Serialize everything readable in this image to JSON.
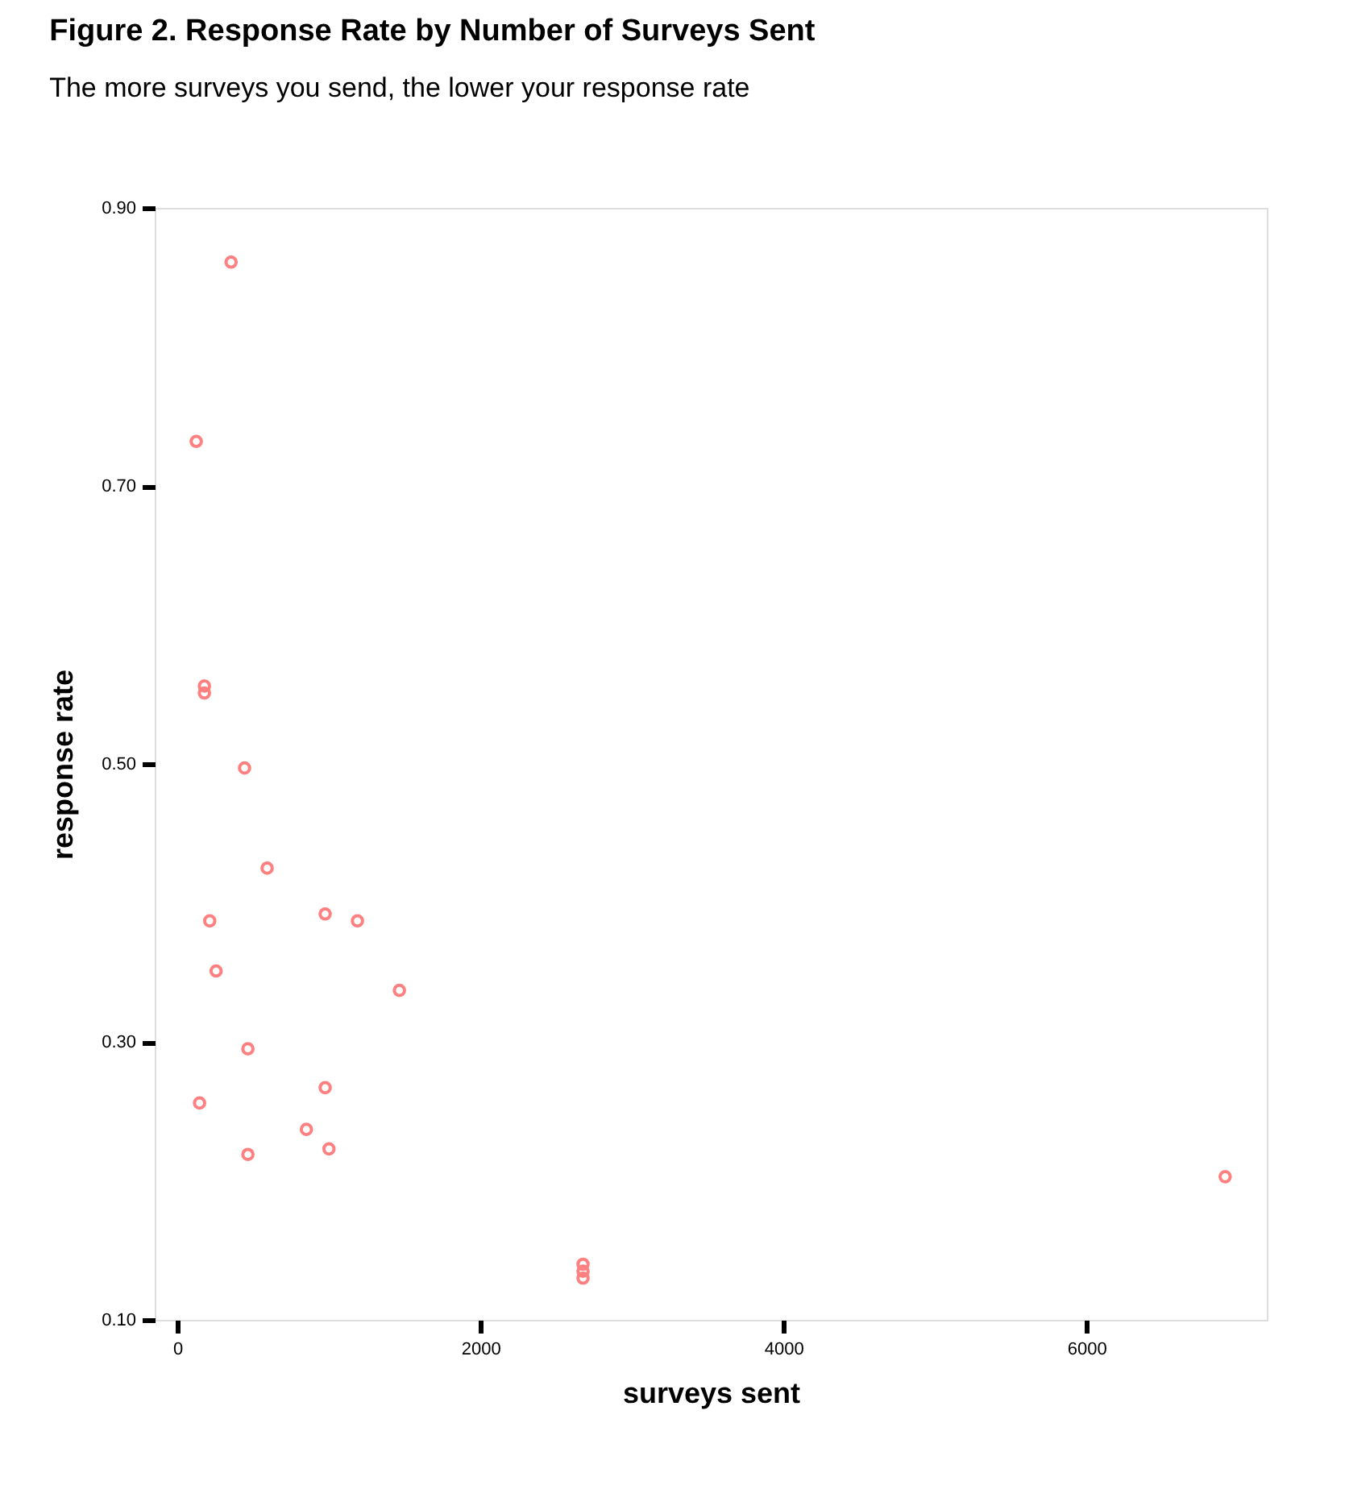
{
  "chart_data": {
    "type": "scatter",
    "title": "Figure 2. Response Rate by Number of Surveys Sent",
    "subtitle": "The more surveys you send, the lower your response rate",
    "xlabel": "surveys sent",
    "ylabel": "response rate",
    "x": [
      354,
      124,
      178,
      178,
      443,
      592,
      213,
      975,
      1188,
      255,
      1465,
      465,
      975,
      146,
      851,
      1000,
      465,
      2677,
      2677,
      2677,
      6915
    ],
    "series": [
      {
        "color": "#ff8080",
        "values": [
          0.861,
          0.732,
          0.556,
          0.551,
          0.497,
          0.425,
          0.387,
          0.392,
          0.387,
          0.351,
          0.337,
          0.295,
          0.267,
          0.256,
          0.237,
          0.223,
          0.219,
          0.14,
          0.135,
          0.13,
          0.203
        ]
      }
    ],
    "xlim": [
      -150,
      7190
    ],
    "ylim": [
      0.1,
      0.9
    ],
    "xticks": [
      0,
      2000,
      4000,
      6000
    ],
    "yticks": [
      {
        "value": 0.1,
        "label": "0.10"
      },
      {
        "value": 0.3,
        "label": "0.30"
      },
      {
        "value": 0.5,
        "label": "0.50"
      },
      {
        "value": 0.7,
        "label": "0.70"
      },
      {
        "value": 0.9,
        "label": "0.90"
      }
    ],
    "marker": "circle",
    "grid": false
  }
}
